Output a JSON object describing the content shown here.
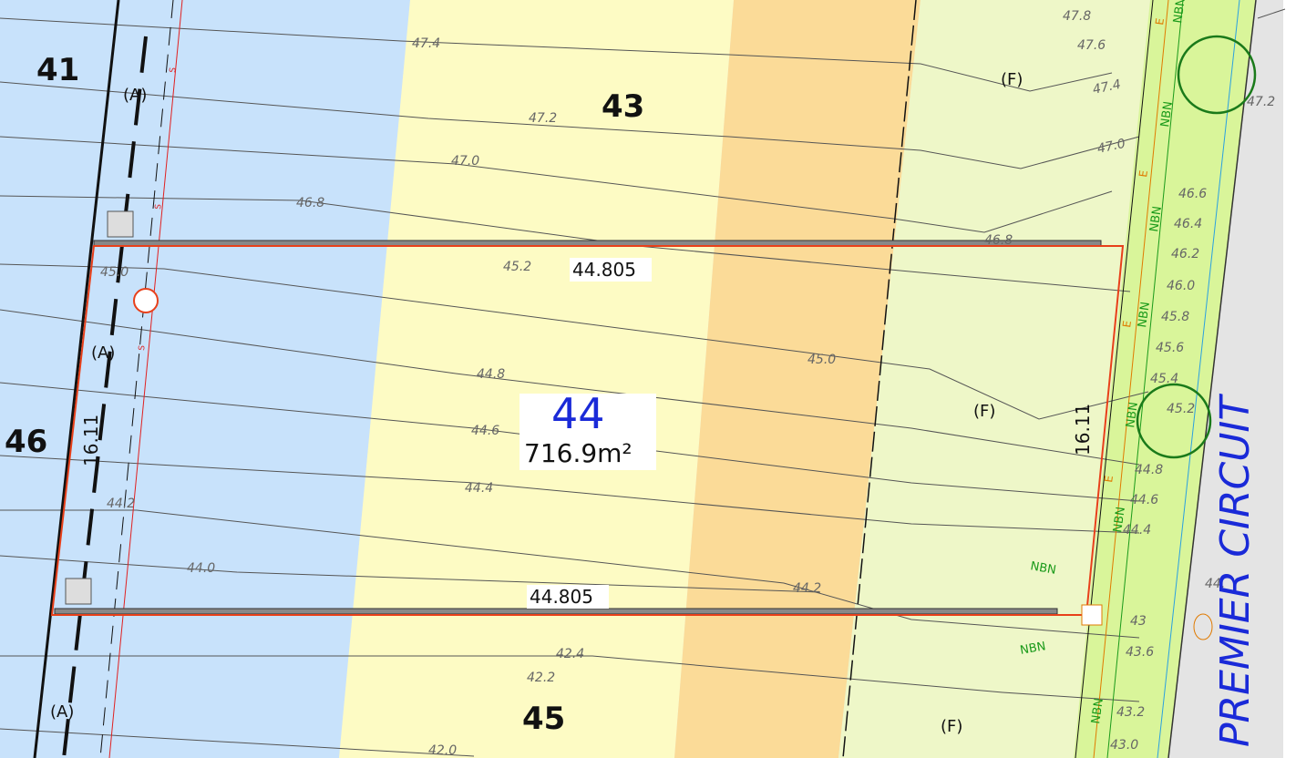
{
  "lots": [
    {
      "number": "41"
    },
    {
      "number": "43"
    },
    {
      "number": "44",
      "area": "716.9m²"
    },
    {
      "number": "45"
    },
    {
      "number": "46"
    }
  ],
  "frontage_labels": [
    "44.805",
    "44.805"
  ],
  "side_labels": [
    "16.11",
    "16.11"
  ],
  "easements": [
    "(A)",
    "(A)",
    "(A)"
  ],
  "fill_zones": [
    "(F)",
    "(F)",
    "(F)"
  ],
  "contours": [
    "47.8",
    "47.6",
    "47.4",
    "47.4",
    "47.2",
    "47.2",
    "47.0",
    "47.0",
    "46.8",
    "46.8",
    "46.6",
    "46.4",
    "46.2",
    "46.0",
    "45.8",
    "45.6",
    "45.4",
    "45.2",
    "45.2",
    "45.0",
    "45.0",
    "44.8",
    "44.8",
    "44.6",
    "44.6",
    "44.4",
    "44.4",
    "44.2",
    "44.0",
    "44.2",
    "44.",
    "43",
    "43.6",
    "43.2",
    "43.0",
    "42.4",
    "42.2",
    "42.0"
  ],
  "services": [
    "NBN",
    "NBN",
    "NBN",
    "NBN",
    "NBN",
    "NBN",
    "NBN",
    "NBN",
    "NBN",
    "E",
    "E",
    "E",
    "E",
    "S",
    "S",
    "S"
  ],
  "street": "PREMIER CIRCUIT"
}
